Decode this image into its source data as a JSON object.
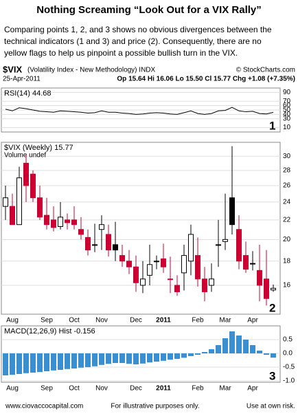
{
  "header": {
    "title": "Nothing Screaming “Look Out for a VIX Rally”",
    "lines": [
      "Comparing points 1, 2, and 3 shows no obvious divergences between the",
      "technical indicators (1 and 3) and price (2).   Consequently, there are no",
      "yellow flags to help us pinpoint a possible bullish turn in the VIX."
    ]
  },
  "chart_header": {
    "symbol": "$VIX",
    "description": "(Volatility Index - New Methodology) INDX",
    "copyright": "© StockCharts.com",
    "date": "25-Apr-2011",
    "quote": "Op 15.64  Hi 16.06  Lo 15.50  Cl 15.77  Chg +1.08 (+7.35%)"
  },
  "chart_data": [
    {
      "type": "line",
      "title": "RSI(14) 44.68",
      "color": "#000000",
      "annotation": "1",
      "values": [
        52,
        48,
        55,
        53,
        50,
        47,
        46,
        45,
        48,
        47,
        46,
        45,
        43,
        44,
        48,
        45,
        45,
        43,
        42,
        40,
        41,
        43,
        44,
        43,
        41,
        40,
        44,
        48,
        42,
        40,
        42,
        48,
        49,
        56,
        48,
        46,
        47,
        42,
        41,
        44.68
      ],
      "ylim": [
        0,
        100
      ],
      "yticks": [
        90,
        70,
        60,
        50,
        40,
        30,
        10
      ],
      "grid": true
    },
    {
      "type": "candlestick",
      "title": "$VIX (Weekly) 15.77",
      "subtitle": "Volume undef",
      "annotation": "2",
      "up_color": "#000000",
      "down_color": "#cc0033",
      "log_scale": true,
      "categories": [
        null,
        "Aug",
        null,
        null,
        null,
        null,
        "Sep",
        null,
        null,
        null,
        "Oct",
        null,
        null,
        null,
        "Nov",
        null,
        null,
        null,
        null,
        "Dec",
        null,
        null,
        null,
        "2011",
        null,
        null,
        null,
        null,
        "Feb",
        null,
        null,
        null,
        "Mar",
        null,
        null,
        null,
        "Apr",
        null,
        null,
        null
      ],
      "open": [
        23.5,
        23.5,
        21.5,
        29,
        27.5,
        24.5,
        22.5,
        22,
        21.3,
        22,
        22,
        21,
        20.2,
        19.5,
        21,
        20.5,
        19.5,
        18.5,
        18,
        17.5,
        16,
        16.8,
        18,
        18.2,
        16.5,
        16,
        17,
        18,
        18.5,
        16.5,
        16,
        19.5,
        19.8,
        24.5,
        21,
        18.5,
        17.8,
        17.2,
        16.5,
        15.64
      ],
      "high": [
        26,
        25,
        28.5,
        30.2,
        28,
        26,
        24.5,
        23.5,
        24,
        22.7,
        23.5,
        22.3,
        21,
        21.6,
        22.5,
        21.5,
        21.8,
        19.5,
        19,
        18.5,
        18,
        19.5,
        18.5,
        19.6,
        18.4,
        16.8,
        19.5,
        21.5,
        20.2,
        17.5,
        17.8,
        22,
        25,
        31.5,
        22.5,
        19.8,
        18.9,
        19.5,
        19,
        16.06
      ],
      "low": [
        22,
        21.5,
        21.5,
        24,
        24,
        22,
        21,
        20.8,
        21,
        21,
        21,
        20,
        18.5,
        18.8,
        19,
        18.4,
        18,
        17.5,
        16.9,
        15.5,
        15.4,
        16,
        17.3,
        17,
        15.4,
        15.2,
        15.6,
        16.8,
        15.9,
        14.8,
        15.5,
        17.5,
        19,
        20.5,
        17.3,
        17,
        17.2,
        14.8,
        14.5,
        15.5
      ],
      "close": [
        24.5,
        21.5,
        27,
        26,
        24.5,
        22.3,
        21.5,
        21.2,
        22.3,
        21.7,
        21.5,
        20.5,
        19,
        19.5,
        21.5,
        19,
        19,
        18,
        17.5,
        16.2,
        16.5,
        17.7,
        18,
        17.5,
        16.5,
        15.5,
        18.5,
        20.5,
        16.5,
        15.5,
        16.5,
        19.5,
        20,
        21.5,
        18,
        17.3,
        17.8,
        16,
        15,
        15.77
      ],
      "ylim": [
        13.9,
        32.1
      ],
      "yticks": [
        30,
        28,
        26,
        24,
        22,
        20,
        18,
        16
      ],
      "grid": true
    },
    {
      "type": "bar",
      "title": "MACD(12,26,9) Hist -0.156",
      "color": "#3a8fd0",
      "annotation": "3",
      "categories": [
        null,
        "Aug",
        null,
        null,
        null,
        null,
        "Sep",
        null,
        null,
        null,
        "Oct",
        null,
        null,
        null,
        "Nov",
        null,
        null,
        null,
        null,
        "Dec",
        null,
        null,
        null,
        "2011",
        null,
        null,
        null,
        null,
        "Feb",
        null,
        null,
        null,
        "Mar",
        null,
        null,
        null,
        "Apr",
        null,
        null,
        null
      ],
      "values": [
        -0.8,
        -0.78,
        -0.75,
        -0.72,
        -0.7,
        -0.68,
        -0.65,
        -0.62,
        -0.6,
        -0.57,
        -0.55,
        -0.52,
        -0.5,
        -0.47,
        -0.42,
        -0.38,
        -0.35,
        -0.35,
        -0.38,
        -0.4,
        -0.37,
        -0.33,
        -0.3,
        -0.27,
        -0.23,
        -0.2,
        -0.16,
        -0.1,
        -0.05,
        0.05,
        0.15,
        0.3,
        0.55,
        0.8,
        0.65,
        0.5,
        0.3,
        0.1,
        -0.05,
        -0.156
      ],
      "ylim": [
        -1.05,
        1.0
      ],
      "yticks": [
        0.5,
        {
          "value": 0,
          "label": "0.0"
        },
        -0.5,
        {
          "value": -1,
          "label": "-1.0"
        }
      ],
      "grid": true
    }
  ],
  "footer": {
    "left": "www.ciovaccocapital.com",
    "center": "For illustrative purposes only.",
    "right": "Use at own risk."
  }
}
